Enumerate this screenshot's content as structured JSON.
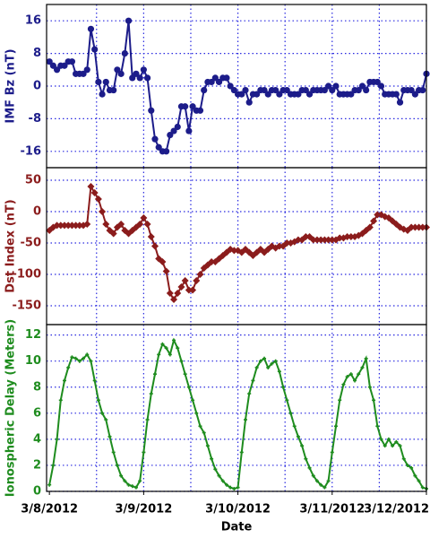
{
  "chart_data": [
    {
      "type": "line",
      "ylabel": "IMF Bz (nT)",
      "color": "#1c1c8a",
      "marker": "circle",
      "xlim": [
        -0.03,
        4.0
      ],
      "xgrid": [
        0.5,
        1,
        1.5,
        2,
        2.5,
        3,
        3.5
      ],
      "ylim": [
        -20,
        20
      ],
      "yticks": [
        -16,
        -8,
        0,
        8,
        16
      ],
      "x": [
        0,
        0.04,
        0.08,
        0.12,
        0.16,
        0.2,
        0.24,
        0.28,
        0.32,
        0.36,
        0.4,
        0.44,
        0.48,
        0.52,
        0.56,
        0.6,
        0.64,
        0.68,
        0.72,
        0.76,
        0.8,
        0.84,
        0.88,
        0.92,
        0.96,
        1,
        1.04,
        1.08,
        1.12,
        1.16,
        1.2,
        1.24,
        1.28,
        1.32,
        1.36,
        1.4,
        1.44,
        1.48,
        1.52,
        1.56,
        1.6,
        1.64,
        1.68,
        1.72,
        1.76,
        1.8,
        1.84,
        1.88,
        1.92,
        1.96,
        2,
        2.04,
        2.08,
        2.12,
        2.16,
        2.2,
        2.24,
        2.28,
        2.32,
        2.36,
        2.4,
        2.44,
        2.48,
        2.52,
        2.56,
        2.6,
        2.64,
        2.68,
        2.72,
        2.76,
        2.8,
        2.84,
        2.88,
        2.92,
        2.96,
        3,
        3.04,
        3.08,
        3.12,
        3.16,
        3.2,
        3.24,
        3.28,
        3.32,
        3.36,
        3.4,
        3.44,
        3.48,
        3.52,
        3.56,
        3.6,
        3.64,
        3.68,
        3.72,
        3.76,
        3.8,
        3.84,
        3.88,
        3.92,
        3.96,
        4
      ],
      "values": [
        6,
        5,
        4,
        5,
        5,
        6,
        6,
        3,
        3,
        3,
        4,
        14,
        9,
        1,
        -2,
        1,
        -1,
        -1,
        4,
        3,
        8,
        16,
        2,
        3,
        2,
        4,
        2,
        -6,
        -13,
        -15,
        -16,
        -16,
        -12,
        -11,
        -10,
        -5,
        -5,
        -11,
        -5,
        -6,
        -6,
        -1,
        1,
        1,
        2,
        1,
        2,
        2,
        0,
        -1,
        -2,
        -2,
        -1,
        -4,
        -2,
        -2,
        -1,
        -1,
        -2,
        -1,
        -1,
        -2,
        -1,
        -1,
        -2,
        -2,
        -2,
        -1,
        -1,
        -2,
        -1,
        -1,
        -1,
        -1,
        0,
        -1,
        0,
        -2,
        -2,
        -2,
        -2,
        -1,
        -1,
        0,
        -1,
        1,
        1,
        1,
        0,
        -2,
        -2,
        -2,
        -2,
        -4,
        -1,
        -1,
        -1,
        -2,
        -1,
        -1,
        3
      ]
    },
    {
      "type": "line",
      "ylabel": "Dst Index (nT)",
      "color": "#8b1c1c",
      "marker": "diamond",
      "xlim": [
        -0.03,
        4.0
      ],
      "xgrid": [
        0.5,
        1,
        1.5,
        2,
        2.5,
        3,
        3.5
      ],
      "ylim": [
        -180,
        70
      ],
      "yticks": [
        -150,
        -100,
        -50,
        0,
        50
      ],
      "x": [
        0,
        0.04,
        0.08,
        0.12,
        0.16,
        0.2,
        0.24,
        0.28,
        0.32,
        0.36,
        0.4,
        0.44,
        0.48,
        0.52,
        0.56,
        0.6,
        0.64,
        0.68,
        0.72,
        0.76,
        0.8,
        0.84,
        0.88,
        0.92,
        0.96,
        1,
        1.04,
        1.08,
        1.12,
        1.16,
        1.2,
        1.24,
        1.28,
        1.32,
        1.36,
        1.4,
        1.44,
        1.48,
        1.52,
        1.56,
        1.6,
        1.64,
        1.68,
        1.72,
        1.76,
        1.8,
        1.84,
        1.88,
        1.92,
        1.96,
        2,
        2.04,
        2.08,
        2.12,
        2.16,
        2.2,
        2.24,
        2.28,
        2.32,
        2.36,
        2.4,
        2.44,
        2.48,
        2.52,
        2.56,
        2.6,
        2.64,
        2.68,
        2.72,
        2.76,
        2.8,
        2.84,
        2.88,
        2.92,
        2.96,
        3,
        3.04,
        3.08,
        3.12,
        3.16,
        3.2,
        3.24,
        3.28,
        3.32,
        3.36,
        3.4,
        3.44,
        3.48,
        3.52,
        3.56,
        3.6,
        3.64,
        3.68,
        3.72,
        3.76,
        3.8,
        3.84,
        3.88,
        3.92,
        3.96,
        4
      ],
      "values": [
        -30,
        -25,
        -22,
        -22,
        -22,
        -22,
        -22,
        -22,
        -22,
        -22,
        -20,
        40,
        30,
        20,
        0,
        -20,
        -30,
        -35,
        -25,
        -20,
        -30,
        -35,
        -30,
        -25,
        -20,
        -10,
        -20,
        -40,
        -55,
        -75,
        -80,
        -95,
        -130,
        -140,
        -130,
        -120,
        -110,
        -125,
        -125,
        -110,
        -100,
        -90,
        -85,
        -80,
        -80,
        -75,
        -70,
        -65,
        -60,
        -62,
        -62,
        -65,
        -60,
        -65,
        -70,
        -65,
        -60,
        -65,
        -60,
        -55,
        -58,
        -55,
        -55,
        -50,
        -50,
        -48,
        -45,
        -45,
        -40,
        -40,
        -45,
        -45,
        -45,
        -45,
        -45,
        -45,
        -45,
        -42,
        -42,
        -40,
        -40,
        -40,
        -38,
        -35,
        -30,
        -25,
        -15,
        -5,
        -5,
        -8,
        -10,
        -15,
        -20,
        -25,
        -28,
        -30,
        -25,
        -25,
        -25,
        -25,
        -25
      ]
    },
    {
      "type": "line",
      "ylabel": "Ionospheric Delay (Meters)",
      "xlabel": "Date",
      "color": "#1e8c1e",
      "marker": "star",
      "xlim": [
        -0.03,
        4.0
      ],
      "xgrid": [
        0.5,
        1,
        1.5,
        2,
        2.5,
        3,
        3.5
      ],
      "xticks": [
        {
          "value": 0,
          "label": "3/8/2012"
        },
        {
          "value": 1,
          "label": "3/9/2012"
        },
        {
          "value": 2,
          "label": "3/10/2012"
        },
        {
          "value": 3,
          "label": "3/11/2012"
        },
        {
          "value": 4,
          "label": "3/12/2012"
        }
      ],
      "ylim": [
        0,
        12.8
      ],
      "yticks": [
        0,
        2,
        4,
        6,
        8,
        10,
        12
      ],
      "x": [
        0,
        0.04,
        0.08,
        0.12,
        0.16,
        0.2,
        0.24,
        0.28,
        0.32,
        0.36,
        0.4,
        0.44,
        0.48,
        0.52,
        0.56,
        0.6,
        0.64,
        0.68,
        0.72,
        0.76,
        0.8,
        0.84,
        0.88,
        0.92,
        0.96,
        1,
        1.04,
        1.08,
        1.12,
        1.16,
        1.2,
        1.24,
        1.28,
        1.32,
        1.36,
        1.4,
        1.44,
        1.48,
        1.52,
        1.56,
        1.6,
        1.64,
        1.68,
        1.72,
        1.76,
        1.8,
        1.84,
        1.88,
        1.92,
        1.96,
        2,
        2.04,
        2.08,
        2.12,
        2.16,
        2.2,
        2.24,
        2.28,
        2.32,
        2.36,
        2.4,
        2.44,
        2.48,
        2.52,
        2.56,
        2.6,
        2.64,
        2.68,
        2.72,
        2.76,
        2.8,
        2.84,
        2.88,
        2.92,
        2.96,
        3,
        3.04,
        3.08,
        3.12,
        3.16,
        3.2,
        3.24,
        3.28,
        3.32,
        3.36,
        3.4,
        3.44,
        3.48,
        3.52,
        3.56,
        3.6,
        3.64,
        3.68,
        3.72,
        3.76,
        3.8,
        3.84,
        3.88,
        3.92,
        3.96,
        4
      ],
      "values": [
        0.5,
        2,
        4,
        7,
        8.5,
        9.5,
        10.3,
        10.2,
        10,
        10.2,
        10.5,
        10,
        8.5,
        7,
        6,
        5.5,
        4.2,
        3,
        2,
        1.2,
        0.8,
        0.5,
        0.4,
        0.3,
        0.8,
        3,
        5.5,
        7.5,
        9,
        10.5,
        11.3,
        11,
        10.5,
        11.6,
        11,
        10,
        9,
        8,
        7,
        6,
        5,
        4.5,
        3.5,
        2.5,
        1.7,
        1.2,
        0.8,
        0.5,
        0.3,
        0.2,
        0.3,
        3,
        5.5,
        7.5,
        8.5,
        9.5,
        10,
        10.2,
        9.5,
        9.8,
        10,
        9.2,
        8,
        7,
        6,
        5,
        4.2,
        3.5,
        2.5,
        1.8,
        1.2,
        0.8,
        0.5,
        0.3,
        0.8,
        3,
        5,
        7,
        8.2,
        8.8,
        9,
        8.5,
        9,
        9.5,
        10.2,
        8,
        7,
        5,
        4,
        3.5,
        4,
        3.5,
        3.8,
        3.5,
        2.5,
        2,
        1.8,
        1.2,
        0.8,
        0.3,
        0.2
      ]
    }
  ]
}
